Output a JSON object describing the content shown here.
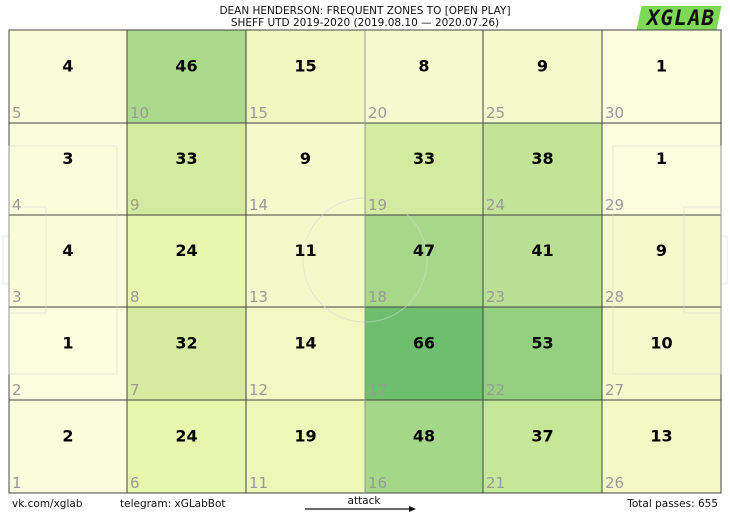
{
  "title_line1": "DEAN HENDERSON: FREQUENT ZONES TO [OPEN PLAY]",
  "title_line2": "SHEFF UTD 2019-2020 (2019.08.10 — 2020.07.26)",
  "logo_text": "XGLAB",
  "footer": {
    "vk": "vk.com/xglab",
    "telegram": "telegram: xGLabBot",
    "attack": "attack",
    "total": "Total passes: 655"
  },
  "colors": {
    "low": "#fdfde0",
    "mid": "#e6f4a8",
    "high": "#6dbe6d",
    "grid": "#444444",
    "zone_number": "#9a9a9a"
  },
  "chart_data": {
    "type": "heatmap",
    "columns": 6,
    "rows": 5,
    "max": 66,
    "cells": [
      {
        "zone": 5,
        "value": 4
      },
      {
        "zone": 10,
        "value": 46
      },
      {
        "zone": 15,
        "value": 15
      },
      {
        "zone": 20,
        "value": 8
      },
      {
        "zone": 25,
        "value": 9
      },
      {
        "zone": 30,
        "value": 1
      },
      {
        "zone": 4,
        "value": 3
      },
      {
        "zone": 9,
        "value": 33
      },
      {
        "zone": 14,
        "value": 9
      },
      {
        "zone": 19,
        "value": 33
      },
      {
        "zone": 24,
        "value": 38
      },
      {
        "zone": 29,
        "value": 1
      },
      {
        "zone": 3,
        "value": 4
      },
      {
        "zone": 8,
        "value": 24
      },
      {
        "zone": 13,
        "value": 11
      },
      {
        "zone": 18,
        "value": 47
      },
      {
        "zone": 23,
        "value": 41
      },
      {
        "zone": 28,
        "value": 9
      },
      {
        "zone": 2,
        "value": 1
      },
      {
        "zone": 7,
        "value": 32
      },
      {
        "zone": 12,
        "value": 14
      },
      {
        "zone": 17,
        "value": 66
      },
      {
        "zone": 22,
        "value": 53
      },
      {
        "zone": 27,
        "value": 10
      },
      {
        "zone": 1,
        "value": 2
      },
      {
        "zone": 6,
        "value": 24
      },
      {
        "zone": 11,
        "value": 19
      },
      {
        "zone": 16,
        "value": 48
      },
      {
        "zone": 21,
        "value": 37
      },
      {
        "zone": 26,
        "value": 13
      }
    ]
  }
}
